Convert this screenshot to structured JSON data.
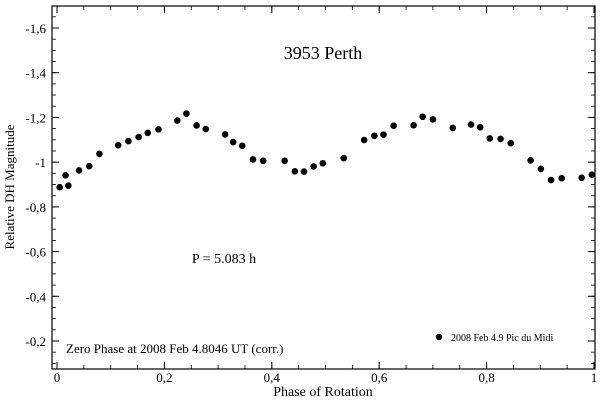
{
  "chart_data": {
    "type": "scatter",
    "title": "3953 Perth",
    "xlabel": "Phase of Rotation",
    "ylabel": "Relative DH Magnitude",
    "xlim": [
      0,
      1
    ],
    "ylim": [
      -0.1,
      -1.7
    ],
    "y_axis_inverted": true,
    "grid": false,
    "x_ticks": [
      0,
      0.2,
      0.4,
      0.6,
      0.8,
      1
    ],
    "x_tick_labels": [
      "0",
      "0,2",
      "0,4",
      "0,6",
      "0,8",
      "1"
    ],
    "y_ticks": [
      -0.2,
      -0.4,
      -0.6,
      -0.8,
      -1.0,
      -1.2,
      -1.4,
      -1.6
    ],
    "y_tick_labels": [
      "-0,2",
      "-0,4",
      "-0,6",
      "-0,8",
      "-1",
      "-1,2",
      "-1,4",
      "-1,6"
    ],
    "annotations": {
      "period": "P = 5.083 h",
      "zero_phase": "Zero Phase at 2008 Feb 4.8046 UT (corr.)"
    },
    "legend_position": "bottom-right",
    "marker_color": "#000000",
    "series": [
      {
        "name": "2008 Feb 4.9 Pic du Midi",
        "points": [
          [
            0.005,
            -0.888
          ],
          [
            0.016,
            -0.941
          ],
          [
            0.021,
            -0.895
          ],
          [
            0.041,
            -0.963
          ],
          [
            0.06,
            -0.982
          ],
          [
            0.079,
            -1.037
          ],
          [
            0.114,
            -1.076
          ],
          [
            0.133,
            -1.094
          ],
          [
            0.152,
            -1.112
          ],
          [
            0.169,
            -1.131
          ],
          [
            0.189,
            -1.147
          ],
          [
            0.224,
            -1.186
          ],
          [
            0.241,
            -1.217
          ],
          [
            0.26,
            -1.164
          ],
          [
            0.277,
            -1.148
          ],
          [
            0.313,
            -1.124
          ],
          [
            0.328,
            -1.09
          ],
          [
            0.345,
            -1.073
          ],
          [
            0.365,
            -1.012
          ],
          [
            0.384,
            -1.006
          ],
          [
            0.424,
            -1.006
          ],
          [
            0.443,
            -0.959
          ],
          [
            0.46,
            -0.958
          ],
          [
            0.478,
            -0.981
          ],
          [
            0.495,
            -0.995
          ],
          [
            0.534,
            -1.018
          ],
          [
            0.572,
            -1.099
          ],
          [
            0.591,
            -1.118
          ],
          [
            0.608,
            -1.123
          ],
          [
            0.627,
            -1.163
          ],
          [
            0.664,
            -1.165
          ],
          [
            0.681,
            -1.203
          ],
          [
            0.7,
            -1.191
          ],
          [
            0.737,
            -1.153
          ],
          [
            0.771,
            -1.168
          ],
          [
            0.788,
            -1.156
          ],
          [
            0.806,
            -1.106
          ],
          [
            0.826,
            -1.104
          ],
          [
            0.845,
            -1.085
          ],
          [
            0.882,
            -1.008
          ],
          [
            0.901,
            -0.97
          ],
          [
            0.92,
            -0.92
          ],
          [
            0.94,
            -0.928
          ],
          [
            0.977,
            -0.93
          ],
          [
            0.996,
            -0.944
          ]
        ]
      }
    ]
  }
}
